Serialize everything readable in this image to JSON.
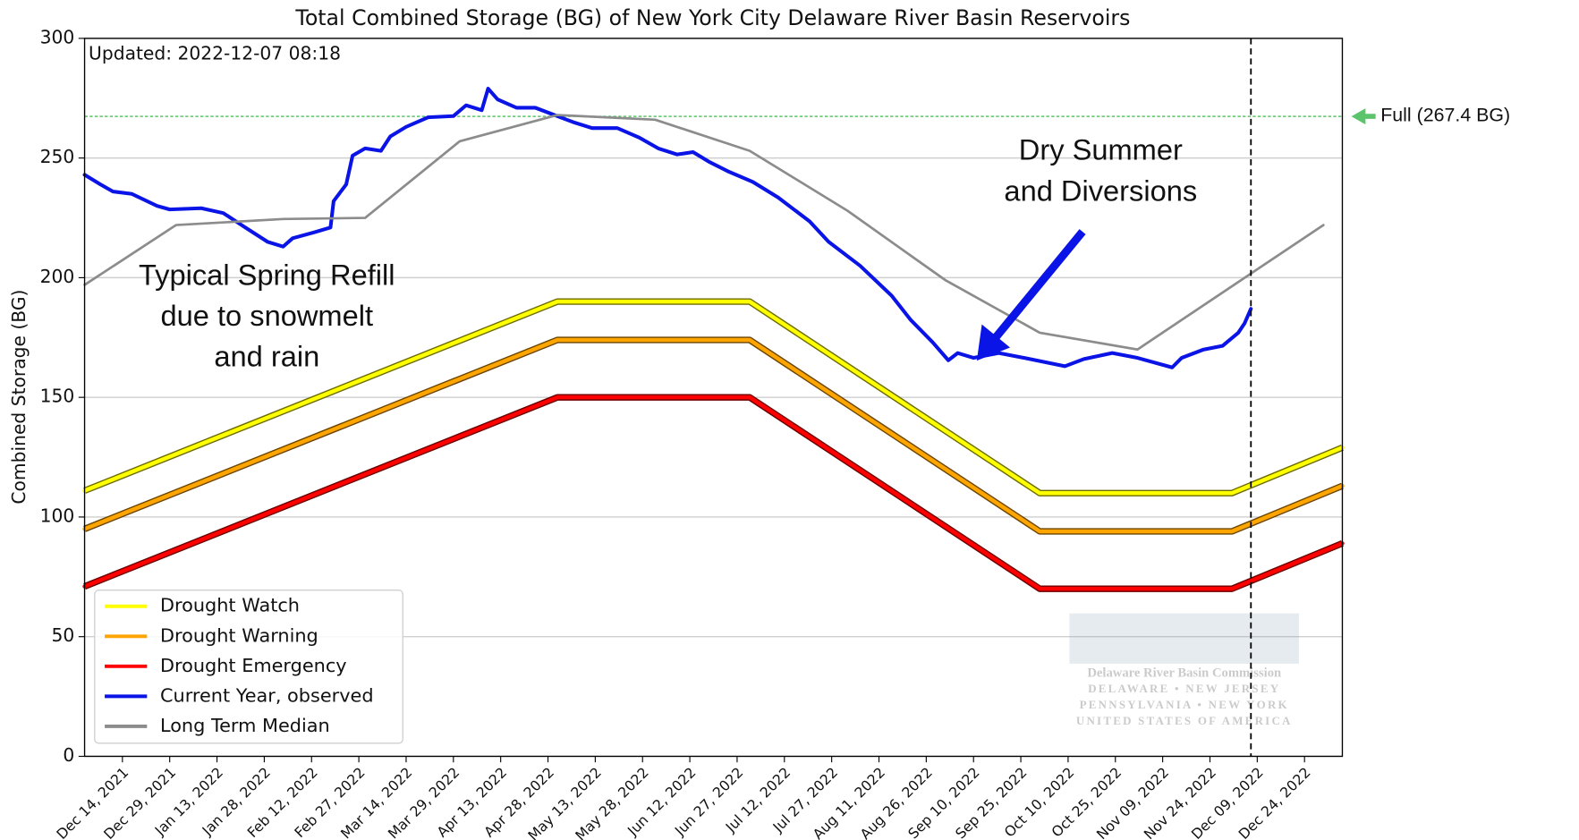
{
  "chart_data": {
    "type": "line",
    "title": "Total Combined Storage (BG) of New York City Delaware River Basin Reservoirs",
    "updated": "Updated: 2022-12-07 08:18",
    "ylabel": "Combined Storage (BG)",
    "xlim": [
      "2021-12-02",
      "2023-01-05"
    ],
    "ylim": [
      0,
      300
    ],
    "yticks": [
      0,
      50,
      100,
      150,
      200,
      250,
      300
    ],
    "xticks": [
      {
        "value": "2021-12-14",
        "label": "Dec 14, 2021"
      },
      {
        "value": "2021-12-29",
        "label": "Dec 29, 2021"
      },
      {
        "value": "2022-01-13",
        "label": "Jan 13, 2022"
      },
      {
        "value": "2022-01-28",
        "label": "Jan 28, 2022"
      },
      {
        "value": "2022-02-12",
        "label": "Feb 12, 2022"
      },
      {
        "value": "2022-02-27",
        "label": "Feb 27, 2022"
      },
      {
        "value": "2022-03-14",
        "label": "Mar 14, 2022"
      },
      {
        "value": "2022-03-29",
        "label": "Mar 29, 2022"
      },
      {
        "value": "2022-04-13",
        "label": "Apr 13, 2022"
      },
      {
        "value": "2022-04-28",
        "label": "Apr 28, 2022"
      },
      {
        "value": "2022-05-13",
        "label": "May 13, 2022"
      },
      {
        "value": "2022-05-28",
        "label": "May 28, 2022"
      },
      {
        "value": "2022-06-12",
        "label": "Jun 12, 2022"
      },
      {
        "value": "2022-06-27",
        "label": "Jun 27, 2022"
      },
      {
        "value": "2022-07-12",
        "label": "Jul 12, 2022"
      },
      {
        "value": "2022-07-27",
        "label": "Jul 27, 2022"
      },
      {
        "value": "2022-08-11",
        "label": "Aug 11, 2022"
      },
      {
        "value": "2022-08-26",
        "label": "Aug 26, 2022"
      },
      {
        "value": "2022-09-10",
        "label": "Sep 10, 2022"
      },
      {
        "value": "2022-09-25",
        "label": "Sep 25, 2022"
      },
      {
        "value": "2022-10-10",
        "label": "Oct 10, 2022"
      },
      {
        "value": "2022-10-25",
        "label": "Oct 25, 2022"
      },
      {
        "value": "2022-11-09",
        "label": "Nov 09, 2022"
      },
      {
        "value": "2022-11-24",
        "label": "Nov 24, 2022"
      },
      {
        "value": "2022-12-09",
        "label": "Dec 09, 2022"
      },
      {
        "value": "2022-12-24",
        "label": "Dec 24, 2022"
      }
    ],
    "grid": true,
    "legend": "lower left",
    "today_line": "2022-12-07",
    "full_level": {
      "value": 267.4,
      "label": "Full (267.4 BG)",
      "color": "#5cc46a"
    },
    "annotations": [
      {
        "lines": [
          "Typical Spring Refill",
          "due to snowmelt",
          "and rain"
        ]
      },
      {
        "lines": [
          "Dry Summer",
          "and Diversions"
        ],
        "color": "#0a14e6"
      }
    ],
    "watermark": [
      "Delaware River Basin Commission",
      "DELAWARE  •  NEW JERSEY",
      "PENNSYLVANIA  •  NEW YORK",
      "UNITED STATES OF AMERICA"
    ],
    "series": [
      {
        "name": "Drought Watch",
        "color": "#ffff00",
        "outline": "#6b6b00",
        "x": [
          "2021-12-02",
          "2022-05-01",
          "2022-07-01",
          "2022-10-01",
          "2022-12-01",
          "2023-01-05"
        ],
        "values": [
          111,
          190,
          190,
          110,
          110,
          129
        ]
      },
      {
        "name": "Drought Warning",
        "color": "#ffa500",
        "outline": "#6b4500",
        "x": [
          "2021-12-02",
          "2022-05-01",
          "2022-07-01",
          "2022-10-01",
          "2022-12-01",
          "2023-01-05"
        ],
        "values": [
          95,
          174,
          174,
          94,
          94,
          113
        ]
      },
      {
        "name": "Drought Emergency",
        "color": "#ff0000",
        "outline": "#6b0000",
        "x": [
          "2021-12-02",
          "2022-05-01",
          "2022-07-01",
          "2022-10-01",
          "2022-12-01",
          "2023-01-05"
        ],
        "values": [
          71,
          150,
          150,
          70,
          70,
          89
        ]
      },
      {
        "name": "Current Year, observed",
        "color": "#0a14e6",
        "x": [
          "2021-12-02",
          "2021-12-07",
          "2021-12-11",
          "2021-12-17",
          "2021-12-25",
          "2021-12-29",
          "2022-01-08",
          "2022-01-15",
          "2022-01-22",
          "2022-01-29",
          "2022-02-03",
          "2022-02-06",
          "2022-02-13",
          "2022-02-18",
          "2022-02-19",
          "2022-02-23",
          "2022-02-25",
          "2022-03-01",
          "2022-03-06",
          "2022-03-09",
          "2022-03-14",
          "2022-03-21",
          "2022-03-29",
          "2022-04-02",
          "2022-04-07",
          "2022-04-09",
          "2022-04-12",
          "2022-04-18",
          "2022-04-24",
          "2022-04-29",
          "2022-05-06",
          "2022-05-12",
          "2022-05-20",
          "2022-05-27",
          "2022-06-02",
          "2022-06-08",
          "2022-06-13",
          "2022-06-18",
          "2022-06-24",
          "2022-07-02",
          "2022-07-10",
          "2022-07-20",
          "2022-07-26",
          "2022-08-05",
          "2022-08-15",
          "2022-08-21",
          "2022-08-28",
          "2022-09-02",
          "2022-09-05",
          "2022-09-10",
          "2022-09-18",
          "2022-09-26",
          "2022-10-09",
          "2022-10-15",
          "2022-10-24",
          "2022-11-01",
          "2022-11-12",
          "2022-11-15",
          "2022-11-22",
          "2022-11-28",
          "2022-12-03",
          "2022-12-05",
          "2022-12-07"
        ],
        "values": [
          243,
          239,
          236,
          235,
          230,
          228.5,
          229,
          227,
          221,
          215,
          213,
          216.5,
          219,
          221,
          232,
          239,
          251,
          254,
          253,
          259,
          263,
          267,
          267.5,
          272,
          270,
          279,
          274.5,
          271,
          271,
          268.5,
          265,
          262.5,
          262.5,
          258.5,
          254,
          251.5,
          252.5,
          248.5,
          244.5,
          240,
          233.5,
          223.5,
          215,
          205,
          192.5,
          182.5,
          173,
          165.5,
          168.5,
          166.5,
          168.5,
          166.5,
          163,
          166,
          168.5,
          166.5,
          162.5,
          166.5,
          170,
          171.5,
          177,
          181,
          187
        ]
      },
      {
        "name": "Long Term Median",
        "color": "#8c8c8c",
        "x": [
          "2021-12-02",
          "2021-12-31",
          "2022-02-03",
          "2022-03-01",
          "2022-03-31",
          "2022-05-01",
          "2022-06-01",
          "2022-07-01",
          "2022-08-01",
          "2022-09-01",
          "2022-10-01",
          "2022-11-01",
          "2022-12-30"
        ],
        "values": [
          197,
          222,
          224.5,
          225,
          257,
          268,
          266,
          253,
          228,
          199,
          177,
          170,
          222
        ]
      }
    ]
  }
}
